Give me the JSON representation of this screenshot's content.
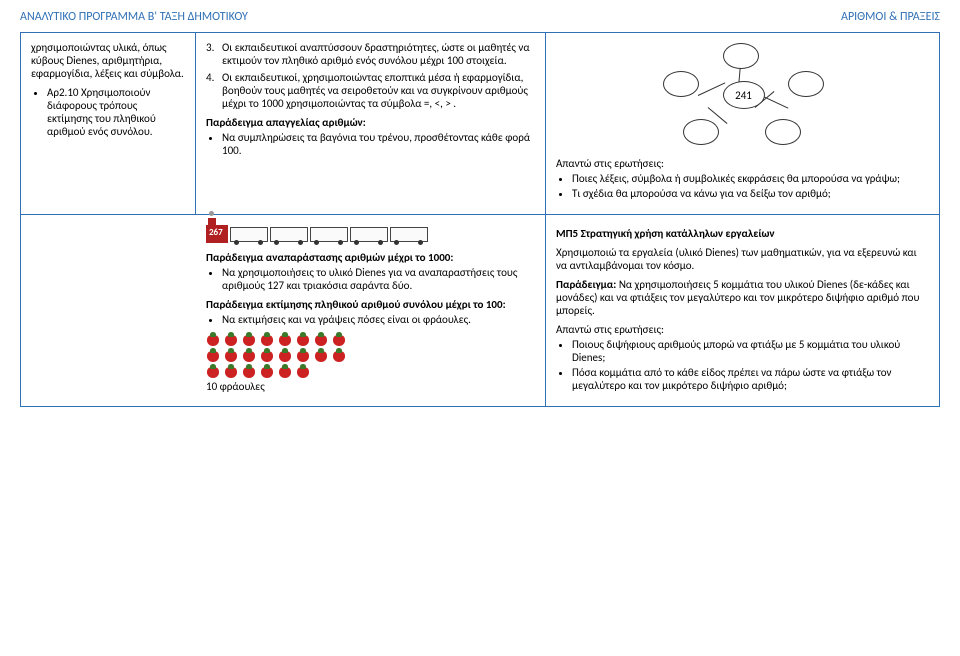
{
  "header": {
    "left": "ΑΝΑΛΥΤΙΚΟ ΠΡΟΓΡΑΜΜΑ Β' ΤΑΞΗ ΔΗΜΟΤΙΚΟΥ",
    "right": "ΑΡΙΘΜΟΙ & ΠΡΑΞΕΙΣ"
  },
  "colA": {
    "p1": "χρησιμοποιώντας υλικά, όπως κύβους Dienes, αριθμητήρια, εφαρμογίδια, λέξεις και σύμβολα.",
    "bullet1": "Αρ2.10 Χρησιμοποιούν διάφορους τρόπους εκτίμησης του πληθικού αριθμού ενός συνόλου."
  },
  "colB": {
    "item3_num": "3.",
    "item3": "Οι εκπαιδευτικοί αναπτύσσουν δραστηριότητες, ώστε οι μαθητές να εκτιμούν τον πληθικό αριθμό ενός συνόλου μέχρι 100 στοιχεία.",
    "item4_num": "4.",
    "item4": "Οι εκπαιδευτικοί, χρησιμοποιώντας εποπτικά μέσα ή εφαρμογίδια, βοηθούν τους μαθητές να σειροθετούν και να συγκρίνουν αριθμούς μέχρι το 1000 χρησιμοποιώντας τα σύμβολα =, <, > .",
    "ex1_title": "Παράδειγμα απαγγελίας αριθμών:",
    "ex1_b1": "Να συμπληρώσεις τα βαγόνια του τρένου, προσθέτοντας κάθε φορά 100.",
    "engine_num": "267",
    "ex2_title": "Παράδειγμα αναπαράστασης αριθμών μέχρι το 1000:",
    "ex2_b1": "Να χρησιμοποιήσεις το υλικό Dienes για να αναπαραστήσεις τους αριθμούς 127 και τριακόσια σαράντα δύο.",
    "ex3_title": "Παράδειγμα εκτίμησης πληθικού αριθμού συνόλου μέχρι το 100:",
    "ex3_b1": "Να εκτιμήσεις και να γράψεις πόσες είναι οι φράουλες.",
    "straw_count": 22,
    "straw_caption": "10 φράουλες"
  },
  "colC": {
    "center_num": "241",
    "answer_label": "Απαντώ στις ερωτήσεις:",
    "q1": "Ποιες λέξεις, σύμβολα ή συμβολικές εκφράσεις θα μπορούσα να γράψω;",
    "q2": "Τι σχέδια θα μπορούσα να κάνω για να δείξω τον αριθμό;",
    "mp5_title": "ΜΠ5 Στρατηγική χρήση κατάλληλων εργαλείων",
    "mp5_p1": "Χρησιμοποιώ τα εργαλεία (υλικό Dienes) των μαθηματικών, για να εξερευνώ και να αντιλαμβάνομαι τον κόσμο.",
    "mp5_ex_label": "Παράδειγμα:",
    "mp5_ex": " Να χρησιμοποιήσεις 5 κομμάτια του υλικού Dienes (δε-κάδες και μονάδες) και να φτιάξεις τον μεγαλύτερο και τον μικρότερο διψήφιο αριθμό που μπορείς.",
    "answer_label2": "Απαντώ στις ερωτήσεις:",
    "q3": "Ποιους διψήφιους αριθμούς μπορώ να φτιάξω με 5 κομμάτια του υλικού Dienes;",
    "q4": "Πόσα κομμάτια από το κάθε είδος πρέπει να πάρω ώστε να φτιάξω τον μεγαλύτερο και τον μικρότερο διψήφιο αριθμό;"
  },
  "colors": {
    "blue": "#3070b5",
    "red": "#b02020"
  }
}
